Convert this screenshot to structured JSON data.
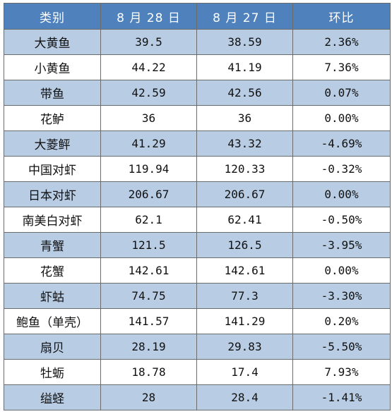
{
  "table": {
    "headers": [
      "类别",
      "8 月 28 日",
      "8 月 27 日",
      "环比"
    ],
    "rows": [
      {
        "category": "大黄鱼",
        "aug28": "39.5",
        "aug27": "38.59",
        "change": "2.36%"
      },
      {
        "category": "小黄鱼",
        "aug28": "44.22",
        "aug27": "41.19",
        "change": "7.36%"
      },
      {
        "category": "带鱼",
        "aug28": "42.59",
        "aug27": "42.56",
        "change": "0.07%"
      },
      {
        "category": "花鲈",
        "aug28": "36",
        "aug27": "36",
        "change": "0.00%"
      },
      {
        "category": "大菱鲆",
        "aug28": "41.29",
        "aug27": "43.32",
        "change": "-4.69%"
      },
      {
        "category": "中国对虾",
        "aug28": "119.94",
        "aug27": "120.33",
        "change": "-0.32%"
      },
      {
        "category": "日本对虾",
        "aug28": "206.67",
        "aug27": "206.67",
        "change": "0.00%"
      },
      {
        "category": "南美白对虾",
        "aug28": "62.1",
        "aug27": "62.41",
        "change": "-0.50%"
      },
      {
        "category": "青蟹",
        "aug28": "121.5",
        "aug27": "126.5",
        "change": "-3.95%"
      },
      {
        "category": "花蟹",
        "aug28": "142.61",
        "aug27": "142.61",
        "change": "0.00%"
      },
      {
        "category": "虾蛄",
        "aug28": "74.75",
        "aug27": "77.3",
        "change": "-3.30%"
      },
      {
        "category": "鲍鱼（单壳）",
        "aug28": "141.57",
        "aug27": "141.29",
        "change": "0.20%"
      },
      {
        "category": "扇贝",
        "aug28": "28.19",
        "aug27": "29.83",
        "change": "-5.50%"
      },
      {
        "category": "牡蛎",
        "aug28": "18.78",
        "aug27": "17.4",
        "change": "7.93%"
      },
      {
        "category": "缢蛏",
        "aug28": "28",
        "aug27": "28.4",
        "change": "-1.41%"
      }
    ]
  },
  "colors": {
    "header_bg": "#4f81bd",
    "header_text": "#ffffff",
    "band_row_bg": "#b8cce4",
    "plain_row_bg": "#ffffff",
    "border": "#6b6b6b"
  }
}
